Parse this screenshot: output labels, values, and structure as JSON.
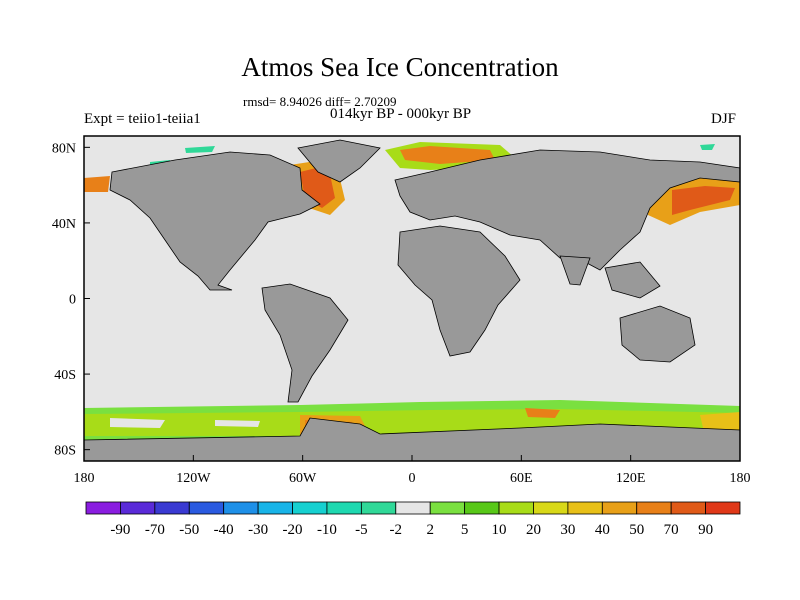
{
  "title": "Atmos Sea Ice Concentration",
  "stats_line": "rmsd= 8.94026 diff= 2.70209",
  "subtitle": "014kyr BP - 000kyr BP",
  "left_label": "Expt = teiio1-teiia1",
  "right_label": "DJF",
  "map": {
    "projection": "cylindrical equidistant",
    "lon_range": [
      -180,
      180
    ],
    "lat_range": [
      -90,
      90
    ],
    "x_ticks": [
      {
        "lon": -180,
        "label": "180"
      },
      {
        "lon": -120,
        "label": "120W"
      },
      {
        "lon": -60,
        "label": "60W"
      },
      {
        "lon": 0,
        "label": "0"
      },
      {
        "lon": 60,
        "label": "60E"
      },
      {
        "lon": 120,
        "label": "120E"
      },
      {
        "lon": 180,
        "label": "180"
      }
    ],
    "y_ticks": [
      {
        "lat": 80,
        "label": "80N"
      },
      {
        "lat": 40,
        "label": "40N"
      },
      {
        "lat": 0,
        "label": "0"
      },
      {
        "lat": -40,
        "label": "40S"
      },
      {
        "lat": -80,
        "label": "80S"
      }
    ],
    "colors": {
      "background": "#e6e6e6",
      "land": "#999999",
      "coastline": "#000000"
    }
  },
  "colorbar": {
    "labels": [
      "-90",
      "-70",
      "-50",
      "-40",
      "-30",
      "-20",
      "-10",
      "-5",
      "-2",
      "2",
      "5",
      "10",
      "20",
      "30",
      "40",
      "50",
      "70",
      "90"
    ],
    "colors": [
      "#8a1de0",
      "#5a2ad8",
      "#3a3ad2",
      "#2a5ae0",
      "#1e90e8",
      "#18b4e8",
      "#16d0d0",
      "#1ed8b0",
      "#30d898",
      "#e6e6e6",
      "#7ae040",
      "#58c818",
      "#a8dc18",
      "#d8d818",
      "#e8c018",
      "#e8a018",
      "#e88018",
      "#e05a18",
      "#e03818"
    ]
  }
}
